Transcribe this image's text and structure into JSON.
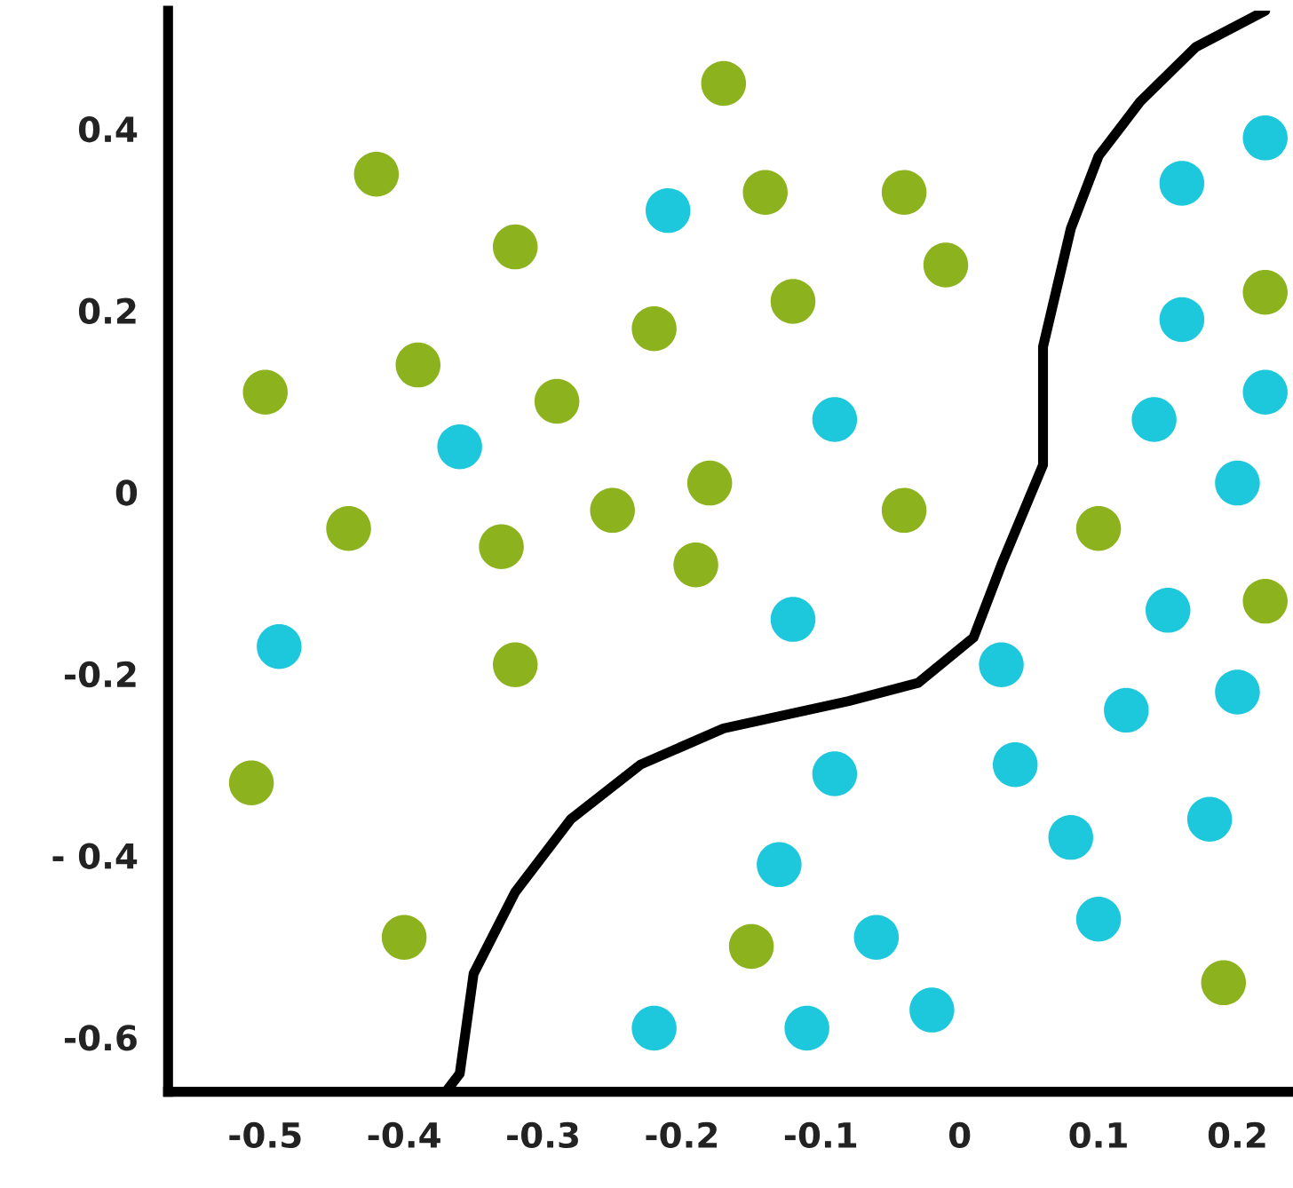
{
  "chart_data": {
    "type": "scatter",
    "xlim": [
      -0.57,
      0.24
    ],
    "ylim": [
      -0.66,
      0.53
    ],
    "xticks": [
      -0.5,
      -0.4,
      -0.3,
      -0.2,
      -0.1,
      0,
      0.1,
      0.2
    ],
    "yticks": [
      0.4,
      0.2,
      0,
      -0.2,
      {
        "value": -0.4,
        "label": "- 0.4"
      },
      -0.6
    ],
    "series": [
      {
        "marker": "circle",
        "color": "#8cb21e",
        "x": [
          -0.42,
          -0.17,
          -0.32,
          -0.14,
          -0.04,
          -0.01,
          -0.22,
          -0.12,
          -0.5,
          -0.39,
          -0.29,
          -0.18,
          -0.25,
          -0.44,
          -0.33,
          -0.19,
          -0.04,
          -0.32,
          -0.51,
          -0.4,
          -0.15,
          0.1,
          0.22,
          0.22,
          0.19
        ],
        "values": [
          0.35,
          0.45,
          0.27,
          0.33,
          0.33,
          0.25,
          0.18,
          0.21,
          0.11,
          0.14,
          0.1,
          0.01,
          -0.02,
          -0.04,
          -0.06,
          -0.08,
          -0.02,
          -0.19,
          -0.32,
          -0.49,
          -0.5,
          -0.04,
          0.22,
          -0.12,
          -0.54
        ]
      },
      {
        "marker": "circle",
        "color": "#1ec8dc",
        "x": [
          -0.21,
          -0.36,
          -0.49,
          -0.09,
          -0.12,
          0.16,
          0.22,
          0.16,
          0.22,
          0.14,
          0.2,
          0.15,
          0.03,
          0.2,
          0.12,
          0.04,
          -0.09,
          0.08,
          0.18,
          -0.13,
          0.1,
          -0.06,
          -0.22,
          -0.11,
          -0.02
        ],
        "values": [
          0.31,
          0.05,
          -0.17,
          0.08,
          -0.14,
          0.34,
          0.39,
          0.19,
          0.11,
          0.08,
          0.01,
          -0.13,
          -0.19,
          -0.22,
          -0.24,
          -0.3,
          -0.31,
          -0.38,
          -0.36,
          -0.41,
          -0.47,
          -0.49,
          -0.59,
          -0.59,
          -0.57
        ]
      },
      {
        "type": "line",
        "color": "#000000",
        "line_style": "solid",
        "x": [
          -0.37,
          -0.36,
          -0.35,
          -0.32,
          -0.28,
          -0.23,
          -0.17,
          -0.08,
          -0.03,
          0.01,
          0.03,
          0.06,
          0.06,
          0.08,
          0.1,
          0.13,
          0.17,
          0.22
        ],
        "values": [
          -0.66,
          -0.64,
          -0.53,
          -0.44,
          -0.36,
          -0.3,
          -0.26,
          -0.23,
          -0.21,
          -0.16,
          -0.08,
          0.03,
          0.16,
          0.29,
          0.37,
          0.43,
          0.49,
          0.53
        ]
      }
    ]
  }
}
